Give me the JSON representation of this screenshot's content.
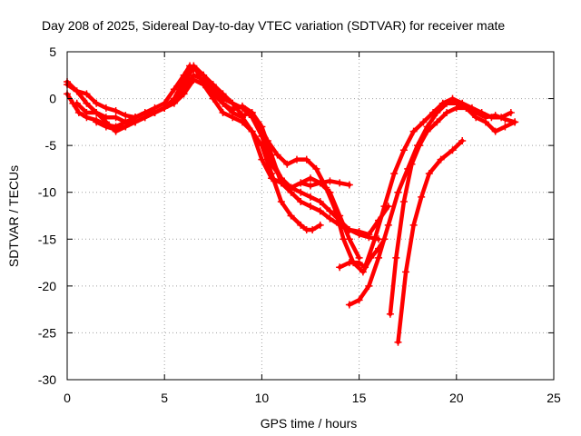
{
  "chart_data": {
    "type": "scatter",
    "title": "Day 208 of 2025, Sidereal Day-to-day VTEC variation (SDTVAR) for receiver mate",
    "xlabel": "GPS time / hours",
    "ylabel": "SDTVAR / TECUs",
    "xlim": [
      0,
      25
    ],
    "ylim": [
      -30,
      5
    ],
    "xticks": [
      "0",
      "5",
      "10",
      "15",
      "20",
      "25"
    ],
    "yticks": [
      "5",
      "0",
      "-5",
      "-10",
      "-15",
      "-20",
      "-25",
      "-30"
    ],
    "grid": true,
    "color": "#ff0000",
    "marker": "plus",
    "series": [
      {
        "name": "track-1",
        "x": [
          0,
          0.5,
          1,
          1.5,
          2,
          2.5,
          3,
          3.5,
          4,
          4.5,
          5,
          5.5,
          6,
          6.3,
          6.6,
          7,
          7.5,
          8,
          8.5,
          9,
          9.5,
          10,
          10.5,
          11,
          11.5,
          12,
          12.5,
          13,
          13.5,
          14,
          14.5
        ],
        "y": [
          1.5,
          0.8,
          0.5,
          -0.5,
          -1,
          -1.3,
          -1.8,
          -2,
          -1.5,
          -1,
          -0.5,
          1,
          2.5,
          3.5,
          3.2,
          1.5,
          0.5,
          -0.5,
          -1.5,
          -2,
          -3.5,
          -6.5,
          -8.5,
          -9,
          -9.5,
          -9,
          -9.3,
          -9,
          -8.8,
          -9,
          -9.2
        ]
      },
      {
        "name": "track-2",
        "x": [
          0,
          0.3,
          0.6,
          1,
          1.5,
          2,
          2.5,
          3,
          3.5,
          4,
          4.5,
          5,
          5.5,
          6,
          6.5,
          7,
          7.5,
          8,
          8.5,
          9,
          9.5,
          10,
          10.5,
          11,
          11.5,
          12,
          12.5,
          13,
          13.5,
          14,
          14.5,
          15,
          15.5,
          16
        ],
        "y": [
          0.5,
          -0.5,
          -1.5,
          -2,
          -2.3,
          -2.8,
          -3,
          -2.5,
          -2,
          -1.5,
          -1.5,
          -1,
          0,
          2,
          3.2,
          2.5,
          1,
          -0.5,
          -1.2,
          -0.8,
          -1.5,
          -4,
          -7,
          -8.5,
          -9.5,
          -10,
          -10.5,
          -11,
          -12,
          -13,
          -14,
          -14.5,
          -14.8,
          -15
        ]
      },
      {
        "name": "track-3",
        "x": [
          0,
          0.5,
          1,
          1.5,
          2,
          2.5,
          3,
          3.5,
          4,
          4.5,
          5,
          5.5,
          6,
          6.5,
          7,
          7.5,
          8,
          8.5,
          9,
          9.5,
          10,
          10.5,
          11,
          11.5,
          12,
          12.5,
          13,
          13.5,
          14,
          14.5,
          15,
          15.5,
          16,
          16.5
        ],
        "y": [
          1.8,
          0.8,
          -0.5,
          -1.5,
          -2.5,
          -3.5,
          -3,
          -2,
          -1.5,
          -1.5,
          -1,
          0,
          1.5,
          3.5,
          2.5,
          1.5,
          0.5,
          -0.5,
          -1.8,
          -1.5,
          -3,
          -6,
          -9,
          -10,
          -11,
          -11.5,
          -12,
          -12.8,
          -13.5,
          -14,
          -14.2,
          -14.5,
          -13,
          -11.5
        ]
      },
      {
        "name": "track-4",
        "x": [
          0.5,
          1,
          1.5,
          2,
          2.5,
          3,
          3.5,
          4,
          4.5,
          5,
          5.5,
          6,
          6.5,
          7,
          7.5,
          8,
          8.5,
          9,
          9.5,
          10,
          10.5,
          11,
          11.5,
          12,
          12.3,
          12.6,
          13
        ],
        "y": [
          -0.5,
          -1.5,
          -1.5,
          -2,
          -2,
          -2.5,
          -2.5,
          -2,
          -1.5,
          -1,
          -0.5,
          0.5,
          2,
          1.5,
          0,
          -1.5,
          -2,
          -2.5,
          -3.5,
          -5,
          -8,
          -11,
          -12.5,
          -13.5,
          -14,
          -14,
          -13.5
        ]
      },
      {
        "name": "track-5",
        "x": [
          1.5,
          2,
          2.5,
          3,
          3.5,
          4,
          4.5,
          5,
          5.5,
          6,
          6.5,
          7,
          7.5,
          8,
          8.5,
          9,
          9.5,
          10,
          10.5,
          11,
          11.5,
          12,
          12.5,
          13,
          13.5,
          14,
          14.5,
          15
        ],
        "y": [
          -2.5,
          -3,
          -3.3,
          -3,
          -2.5,
          -2,
          -1.5,
          -1,
          0,
          1,
          2.5,
          2,
          1,
          0,
          -0.5,
          -1,
          -2,
          -4,
          -6.5,
          -8.5,
          -9.5,
          -9,
          -8.5,
          -9,
          -10,
          -12.5,
          -15,
          -17
        ]
      },
      {
        "name": "track-6",
        "x": [
          9.8,
          10.3,
          10.8,
          11.3,
          11.8,
          12.3,
          12.8,
          13.3,
          13.8,
          14.2,
          14.7,
          15.2,
          15.6,
          16,
          16.3
        ],
        "y": [
          -2.5,
          -4.5,
          -6,
          -7,
          -6.5,
          -6.5,
          -7.5,
          -9.5,
          -12,
          -15,
          -17.5,
          -18.5,
          -17,
          -16,
          -15
        ]
      },
      {
        "name": "track-7",
        "x": [
          14,
          14.5,
          15,
          15.3,
          15.8,
          16.3,
          16.8,
          17.3,
          17.8,
          18.3,
          18.8,
          19.3,
          19.8,
          20.3,
          20.8,
          21.3,
          21.8,
          22.3,
          22.8
        ],
        "y": [
          -18,
          -17.5,
          -17.5,
          -18,
          -15,
          -11.5,
          -8,
          -5.5,
          -3.5,
          -2.5,
          -1.5,
          -0.5,
          0,
          -0.5,
          -1,
          -1.5,
          -2,
          -2,
          -1.5
        ]
      },
      {
        "name": "track-8",
        "x": [
          14.5,
          15,
          15.5,
          16,
          16.5,
          17,
          17.5,
          18,
          18.5,
          19,
          19.5,
          20,
          20.5,
          21,
          21.5,
          22,
          22.5,
          23
        ],
        "y": [
          -22,
          -21.5,
          -20,
          -17,
          -13.5,
          -10,
          -7.5,
          -5,
          -3,
          -1.5,
          -0.5,
          -0.5,
          -1,
          -1.5,
          -2,
          -1.8,
          -2.2,
          -2.5
        ]
      },
      {
        "name": "track-9",
        "x": [
          16.6,
          16.9,
          17.3,
          17.7,
          18.1,
          18.5,
          19,
          19.5,
          20,
          20.5,
          21,
          21.5,
          22,
          22.5,
          23
        ],
        "y": [
          -23,
          -17,
          -11,
          -7,
          -5,
          -3.5,
          -2.5,
          -1.5,
          -1,
          -1,
          -2,
          -2.5,
          -3.5,
          -3,
          -2.5
        ]
      },
      {
        "name": "track-10",
        "x": [
          17,
          17.4,
          17.8,
          18.2,
          18.6,
          19.2,
          19.8,
          20.3
        ],
        "y": [
          -26,
          -18.5,
          -13.5,
          -10.5,
          -8,
          -6.5,
          -5.5,
          -4.5
        ]
      }
    ]
  }
}
